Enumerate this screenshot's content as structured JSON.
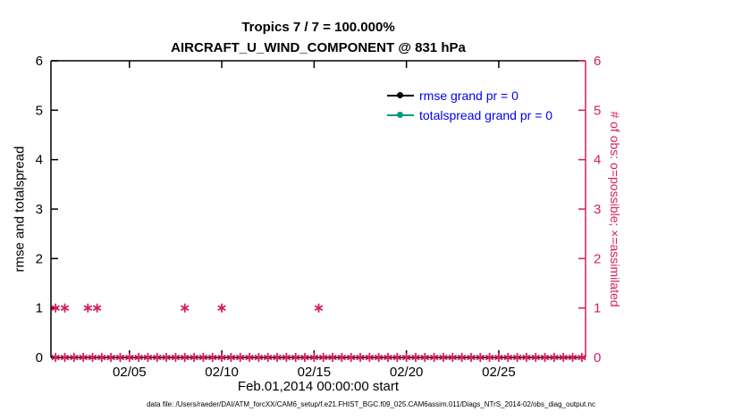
{
  "colors": {
    "axis": "#000000",
    "marker": "#d81b60",
    "right_axis": "#d81b60",
    "legend_text": "#0000ee"
  },
  "caption": "data file: /Users/raeder/DAI/ATM_forcXX/CAM6_setup/f.e21.FHIST_BGC.f09_025.CAM6assim.011/Diags_NTrS_2014-02/obs_diag_output.nc",
  "chart_data": {
    "type": "scatter",
    "title": "Tropics 7 / 7 = 100.000%",
    "subtitle": "AIRCRAFT_U_WIND_COMPONENT @ 831 hPa",
    "xlabel": "Feb.01,2014 00:00:00 start",
    "ylabel_left": "rmse and totalspread",
    "ylabel_right": "# of obs: o=possible; ×=assimilated",
    "ylim": [
      0,
      6
    ],
    "yticks": [
      0,
      1,
      2,
      3,
      4,
      5,
      6
    ],
    "xlim_days": [
      0.75,
      29.7
    ],
    "xticks": [
      {
        "day": 5,
        "label": "02/05"
      },
      {
        "day": 10,
        "label": "02/10"
      },
      {
        "day": 15,
        "label": "02/15"
      },
      {
        "day": 20,
        "label": "02/20"
      },
      {
        "day": 25,
        "label": "02/25"
      }
    ],
    "grid": false,
    "legend_position": "top-right-inside",
    "legend": [
      {
        "label": "rmse grand pr = 0",
        "color": "#000000"
      },
      {
        "label": "totalspread grand pr = 0",
        "color": "#009980"
      }
    ],
    "series": [
      {
        "name": "rmse",
        "color": "#000000",
        "values": []
      },
      {
        "name": "totalspread",
        "color": "#009980",
        "values": []
      }
    ],
    "obs_counts": {
      "marker": "asterisk",
      "axis": "right",
      "y1_days": [
        1,
        1.5,
        2.75,
        3.25,
        8,
        10,
        15.25
      ],
      "y1_value": 1,
      "y0_days": [
        1,
        1.5,
        2,
        2.5,
        3,
        3.5,
        4,
        4.5,
        5,
        5.5,
        6,
        6.5,
        7,
        7.5,
        8,
        8.5,
        9,
        9.5,
        10,
        10.5,
        11,
        11.5,
        12,
        12.5,
        13,
        13.5,
        14,
        14.5,
        15,
        15.5,
        16,
        16.5,
        17,
        17.5,
        18,
        18.5,
        19,
        19.5,
        20,
        20.5,
        21,
        21.5,
        22,
        22.5,
        23,
        23.5,
        24,
        24.5,
        25,
        25.5,
        26,
        26.5,
        27,
        27.5,
        28,
        28.5,
        29,
        29.5
      ],
      "y0_value": 0
    }
  }
}
